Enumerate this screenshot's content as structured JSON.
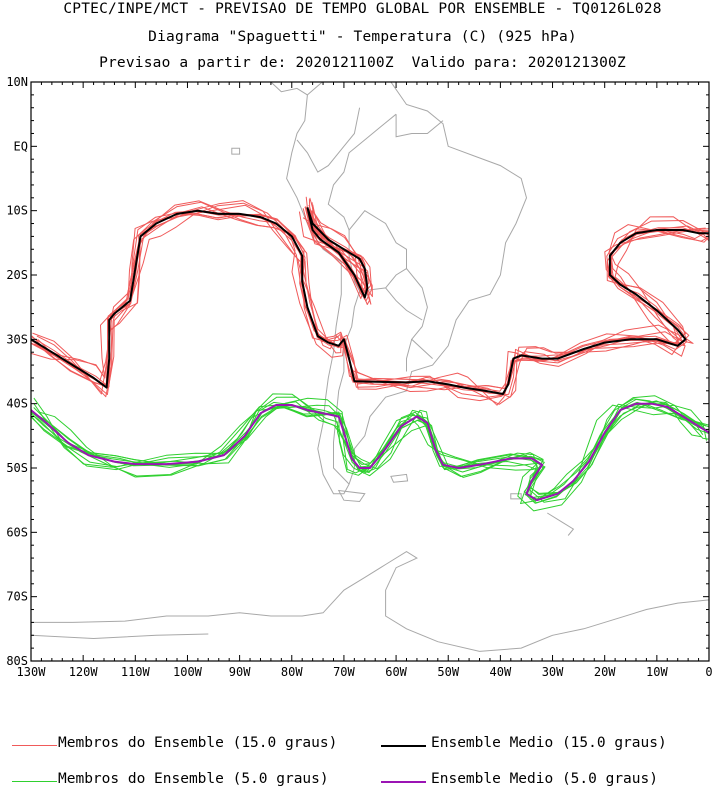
{
  "titles": {
    "line1": "CPTEC/INPE/MCT - PREVISAO DE TEMPO GLOBAL POR ENSEMBLE - TQ0126L028",
    "line2": "Diagrama \"Spaguetti\" - Temperatura (C) (925 hPa)",
    "line3": "Previsao a partir de: 2020121100Z  Valido para: 2020121300Z"
  },
  "colors": {
    "member15": "#f05a5a",
    "mean15": "#000000",
    "member5": "#2fd02f",
    "mean5": "#9b14b4",
    "coast": "#a8a8a8"
  },
  "chart_data": {
    "type": "line",
    "xlim": [
      -130,
      0
    ],
    "ylim": [
      -80,
      10
    ],
    "x_ticks": [
      -130,
      -120,
      -110,
      -100,
      -90,
      -80,
      -70,
      -60,
      -50,
      -40,
      -30,
      -20,
      -10,
      0
    ],
    "x_tick_labels": [
      "130W",
      "120W",
      "110W",
      "100W",
      "90W",
      "80W",
      "70W",
      "60W",
      "50W",
      "40W",
      "30W",
      "20W",
      "10W",
      "0"
    ],
    "y_ticks": [
      10,
      0,
      -10,
      -20,
      -30,
      -40,
      -50,
      -60,
      -70,
      -80
    ],
    "y_tick_labels": [
      "10N",
      "EQ",
      "10S",
      "20S",
      "30S",
      "40S",
      "50S",
      "60S",
      "70S",
      "80S"
    ],
    "series": [
      {
        "name": "Ensemble Medio (15.0 graus)",
        "segments": [
          [
            [
              -130,
              -30
            ],
            [
              -126,
              -32
            ],
            [
              -122,
              -34
            ],
            [
              -118,
              -36
            ],
            [
              -115.5,
              -37.5
            ],
            [
              -115,
              -33
            ],
            [
              -115,
              -27
            ],
            [
              -114,
              -26
            ],
            [
              -111,
              -24
            ],
            [
              -110,
              -19
            ],
            [
              -109,
              -14
            ],
            [
              -106,
              -12
            ],
            [
              -102,
              -10.5
            ],
            [
              -98,
              -10
            ],
            [
              -94,
              -10.5
            ],
            [
              -90,
              -10.5
            ],
            [
              -86,
              -11
            ],
            [
              -83,
              -12
            ],
            [
              -80,
              -14
            ],
            [
              -78,
              -17
            ],
            [
              -78,
              -21
            ],
            [
              -77,
              -25
            ],
            [
              -75,
              -29.5
            ],
            [
              -73,
              -30.5
            ],
            [
              -71,
              -31
            ],
            [
              -70,
              -30
            ],
            [
              -69,
              -33
            ],
            [
              -68,
              -36.5
            ],
            [
              -64,
              -36.6
            ],
            [
              -58,
              -36.7
            ],
            [
              -54,
              -36.5
            ],
            [
              -50,
              -37
            ],
            [
              -47,
              -37.5
            ],
            [
              -43,
              -38
            ],
            [
              -39.5,
              -38.5
            ],
            [
              -38.5,
              -37
            ],
            [
              -37.5,
              -33
            ],
            [
              -36,
              -32.5
            ],
            [
              -32,
              -33
            ],
            [
              -29,
              -33
            ],
            [
              -24,
              -31.5
            ],
            [
              -20,
              -30.5
            ],
            [
              -15,
              -30
            ],
            [
              -10,
              -30
            ],
            [
              -6,
              -31
            ],
            [
              -4.5,
              -30
            ],
            [
              -6,
              -28.5
            ],
            [
              -10,
              -25.5
            ],
            [
              -14,
              -23
            ],
            [
              -17,
              -21.5
            ],
            [
              -19,
              -20
            ],
            [
              -19,
              -17
            ],
            [
              -17,
              -15
            ],
            [
              -14,
              -13.5
            ],
            [
              -10,
              -13
            ],
            [
              -5,
              -13
            ],
            [
              -2,
              -13.5
            ],
            [
              0,
              -13.5
            ]
          ],
          [
            [
              -77,
              -9.5
            ],
            [
              -76,
              -12
            ],
            [
              -73,
              -14.5
            ],
            [
              -70,
              -16
            ],
            [
              -67,
              -17.5
            ],
            [
              -66,
              -19
            ],
            [
              -65.5,
              -22
            ],
            [
              -66,
              -23.5
            ],
            [
              -68,
              -20
            ],
            [
              -71,
              -16.5
            ],
            [
              -74.5,
              -14.5
            ],
            [
              -76,
              -13
            ],
            [
              -77,
              -9.5
            ]
          ]
        ]
      },
      {
        "name": "Ensemble Medio (5.0 graus)",
        "segments": [
          [
            [
              -130,
              -41
            ],
            [
              -127,
              -43
            ],
            [
              -123,
              -46
            ],
            [
              -119,
              -48
            ],
            [
              -114,
              -49
            ],
            [
              -110,
              -49.4
            ],
            [
              -104,
              -49.4
            ],
            [
              -98,
              -49
            ],
            [
              -93,
              -48
            ],
            [
              -89,
              -45
            ],
            [
              -86,
              -41.5
            ],
            [
              -83,
              -40.2
            ],
            [
              -80,
              -40.2
            ],
            [
              -77,
              -41
            ],
            [
              -74,
              -41.5
            ],
            [
              -71,
              -42
            ],
            [
              -70,
              -44.5
            ],
            [
              -68.5,
              -48.5
            ],
            [
              -67,
              -50
            ],
            [
              -65,
              -50
            ],
            [
              -62,
              -47
            ],
            [
              -59,
              -43.5
            ],
            [
              -56,
              -42
            ],
            [
              -54,
              -43
            ],
            [
              -52.5,
              -47
            ],
            [
              -51,
              -49.5
            ],
            [
              -48,
              -50
            ],
            [
              -44,
              -49.5
            ],
            [
              -38,
              -48.5
            ],
            [
              -34,
              -48.5
            ],
            [
              -32,
              -49.5
            ],
            [
              -34,
              -52
            ],
            [
              -35,
              -54
            ],
            [
              -33,
              -55
            ],
            [
              -29,
              -54
            ],
            [
              -26,
              -52
            ],
            [
              -23,
              -49
            ],
            [
              -20,
              -44.5
            ],
            [
              -17,
              -41
            ],
            [
              -14,
              -40
            ],
            [
              -11,
              -40
            ],
            [
              -8,
              -40.5
            ],
            [
              -5,
              -42
            ],
            [
              -2,
              -43.5
            ],
            [
              0,
              -44.5
            ]
          ]
        ]
      }
    ]
  },
  "legend": {
    "member15_label": "Membros do Ensemble (15.0 graus)",
    "mean15_label": "Ensemble Medio (15.0 graus)",
    "member5_label": "Membros do Ensemble (5.0 graus)",
    "mean5_label": "Ensemble Medio (5.0 graus)"
  }
}
